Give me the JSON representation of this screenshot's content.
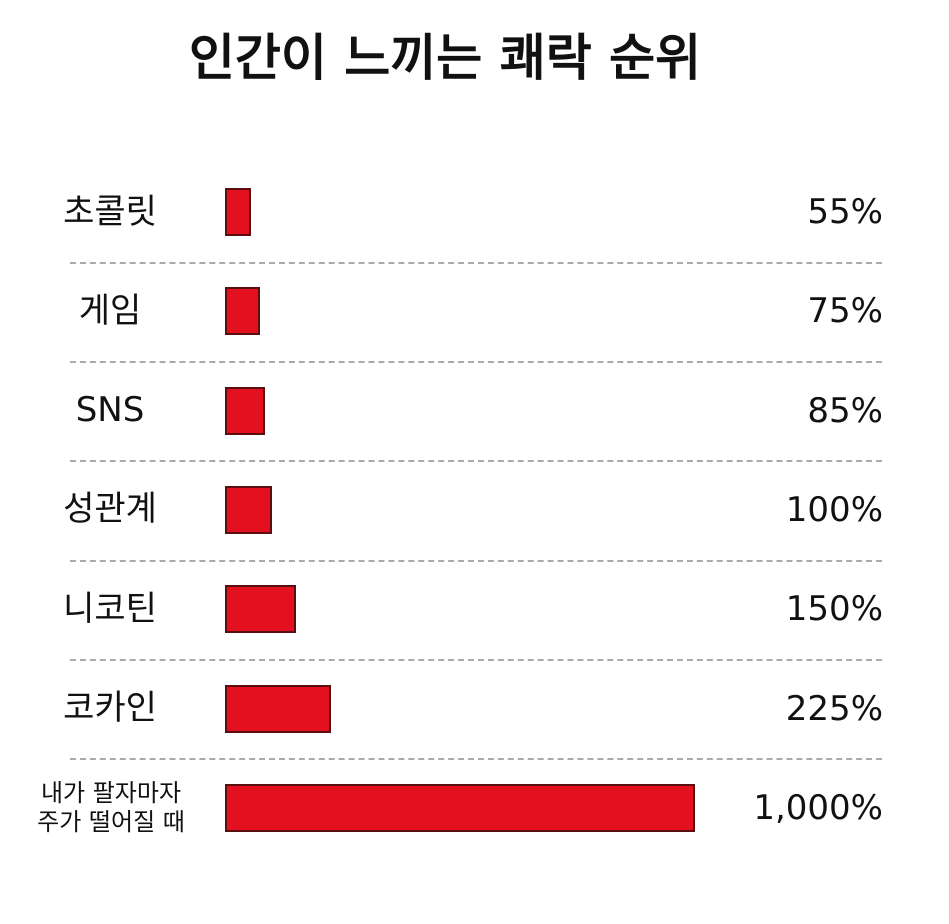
{
  "chart_data": {
    "type": "bar",
    "orientation": "horizontal",
    "title": "인간이 느끼는 쾌락 순위",
    "categories": [
      "초콜릿",
      "게임",
      "SNS",
      "성관계",
      "니코틴",
      "코카인",
      "내가 팔자마자\n주가 떨어질 때"
    ],
    "values": [
      55,
      75,
      85,
      100,
      150,
      225,
      1000
    ],
    "value_labels": [
      "55%",
      "75%",
      "85%",
      "100%",
      "150%",
      "225%",
      "1,000%"
    ],
    "color": "#e3101f"
  }
}
